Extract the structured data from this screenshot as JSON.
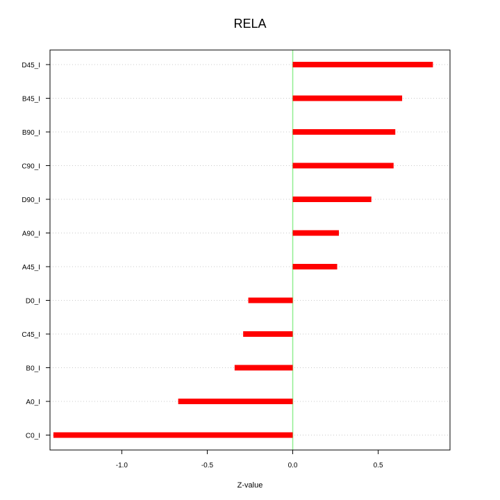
{
  "chart_data": {
    "type": "bar",
    "orientation": "horizontal",
    "title": "RELA",
    "xlabel": "Z-value",
    "ylabel": "",
    "xlim": [
      -1.42,
      0.92
    ],
    "xticks": [
      -1.0,
      -0.5,
      0.0,
      0.5
    ],
    "xtick_labels": [
      "-1.0",
      "-0.5",
      "0.0",
      "0.5"
    ],
    "categories": [
      "D45_I",
      "B45_I",
      "B90_I",
      "C90_I",
      "D90_I",
      "A90_I",
      "A45_I",
      "D0_I",
      "C45_I",
      "B0_I",
      "A0_I",
      "C0_I"
    ],
    "values": [
      0.82,
      0.64,
      0.6,
      0.59,
      0.46,
      0.27,
      0.26,
      -0.26,
      -0.29,
      -0.34,
      -0.67,
      -1.4
    ],
    "grid": "horizontal-dotted",
    "bar_color": "#ff0000",
    "zero_line_color": "#90ee90",
    "grid_color": "#c8c8c8"
  }
}
